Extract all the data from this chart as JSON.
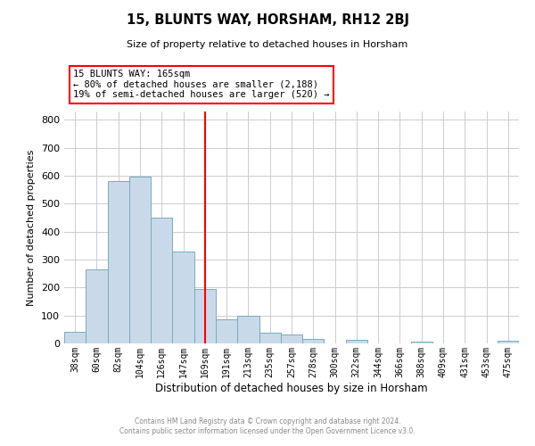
{
  "title": "15, BLUNTS WAY, HORSHAM, RH12 2BJ",
  "subtitle": "Size of property relative to detached houses in Horsham",
  "xlabel": "Distribution of detached houses by size in Horsham",
  "ylabel": "Number of detached properties",
  "bar_labels": [
    "38sqm",
    "60sqm",
    "82sqm",
    "104sqm",
    "126sqm",
    "147sqm",
    "169sqm",
    "191sqm",
    "213sqm",
    "235sqm",
    "257sqm",
    "278sqm",
    "300sqm",
    "322sqm",
    "344sqm",
    "366sqm",
    "388sqm",
    "409sqm",
    "431sqm",
    "453sqm",
    "475sqm"
  ],
  "bar_heights": [
    40,
    265,
    580,
    597,
    450,
    330,
    195,
    85,
    100,
    38,
    32,
    15,
    0,
    12,
    0,
    0,
    5,
    0,
    0,
    0,
    8
  ],
  "bar_color": "#c8daea",
  "bar_edge_color": "#7aaabb",
  "vline_x_index": 6,
  "vline_color": "red",
  "ylim": [
    0,
    830
  ],
  "yticks": [
    0,
    100,
    200,
    300,
    400,
    500,
    600,
    700,
    800
  ],
  "annotation_title": "15 BLUNTS WAY: 165sqm",
  "annotation_line1": "← 80% of detached houses are smaller (2,188)",
  "annotation_line2": "19% of semi-detached houses are larger (520) →",
  "footer_line1": "Contains HM Land Registry data © Crown copyright and database right 2024.",
  "footer_line2": "Contains public sector information licensed under the Open Government Licence v3.0.",
  "background_color": "#ffffff",
  "grid_color": "#cccccc"
}
